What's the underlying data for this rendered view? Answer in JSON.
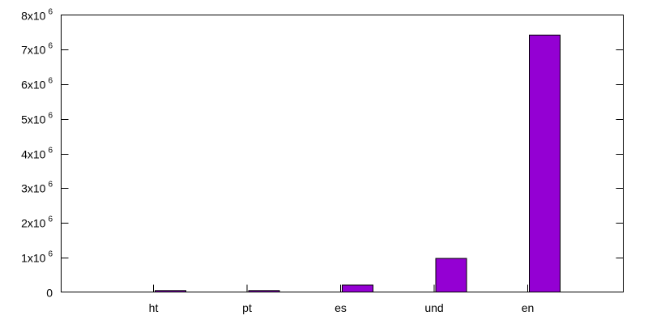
{
  "chart_data": {
    "type": "bar",
    "categories": [
      "ht",
      "pt",
      "es",
      "und",
      "en"
    ],
    "values": [
      40000,
      40000,
      200000,
      970000,
      7420000
    ],
    "ylim": [
      0,
      8000000
    ],
    "ytick_values": [
      0,
      1000000,
      2000000,
      3000000,
      4000000,
      5000000,
      6000000,
      7000000,
      8000000
    ],
    "ytick_labels": [
      {
        "base": "0",
        "exp": ""
      },
      {
        "base": "1x10",
        "exp": "6"
      },
      {
        "base": "2x10",
        "exp": "6"
      },
      {
        "base": "3x10",
        "exp": "6"
      },
      {
        "base": "4x10",
        "exp": "6"
      },
      {
        "base": "5x10",
        "exp": "6"
      },
      {
        "base": "6x10",
        "exp": "6"
      },
      {
        "base": "7x10",
        "exp": "6"
      },
      {
        "base": "8x10",
        "exp": "6"
      }
    ],
    "title": "",
    "xlabel": "",
    "ylabel": "",
    "grid": false,
    "bar_color": "#9400d3"
  }
}
